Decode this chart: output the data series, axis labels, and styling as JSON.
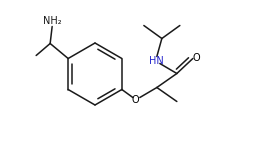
{
  "bg_color": "#ffffff",
  "line_color": "#1a1a1a",
  "figsize": [
    2.54,
    1.52
  ],
  "dpi": 100,
  "nh2_label": "NH₂",
  "hn_label": "HN",
  "o_label": "O",
  "font_size": 7.0,
  "lw": 1.1,
  "o_color": "#000000",
  "hn_color": "#2222cc",
  "nh2_color": "#1a1a1a"
}
